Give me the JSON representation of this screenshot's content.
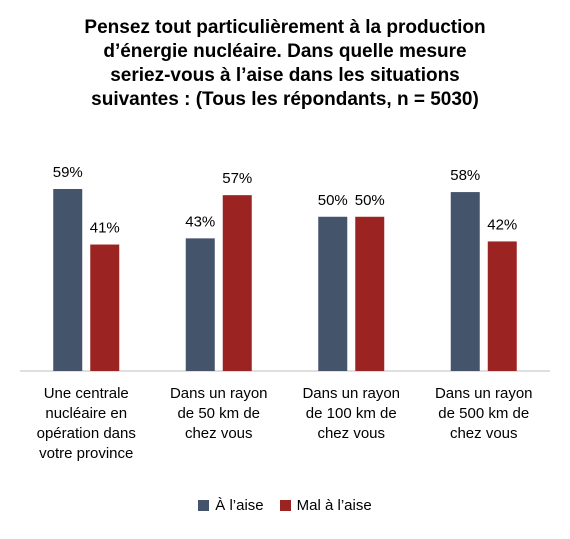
{
  "chart_data": {
    "type": "bar",
    "title_lines": [
      "Pensez tout particulièrement à la production",
      "d’énergie nucléaire. Dans quelle mesure",
      "seriez-vous à l’aise dans les situations",
      "suivantes : (Tous les répondants, n = 5030)"
    ],
    "categories": [
      [
        "Une centrale",
        "nucléaire en",
        "opération dans",
        "votre province"
      ],
      [
        "Dans un rayon",
        "de 50 km de",
        "chez vous"
      ],
      [
        "Dans un rayon",
        "de 100 km de",
        "chez vous"
      ],
      [
        "Dans un rayon",
        "de 500 km de",
        "chez vous"
      ]
    ],
    "series": [
      {
        "name": "À l’aise",
        "color": "#44546a",
        "values": [
          59,
          43,
          50,
          58
        ],
        "labels": [
          "59%",
          "43%",
          "50%",
          "58%"
        ]
      },
      {
        "name": "Mal à l’aise",
        "color": "#9b2423",
        "values": [
          41,
          57,
          50,
          42
        ],
        "labels": [
          "41%",
          "57%",
          "50%",
          "42%"
        ]
      }
    ],
    "ylim": [
      0,
      60
    ],
    "grid": false,
    "legend": "bottom"
  }
}
